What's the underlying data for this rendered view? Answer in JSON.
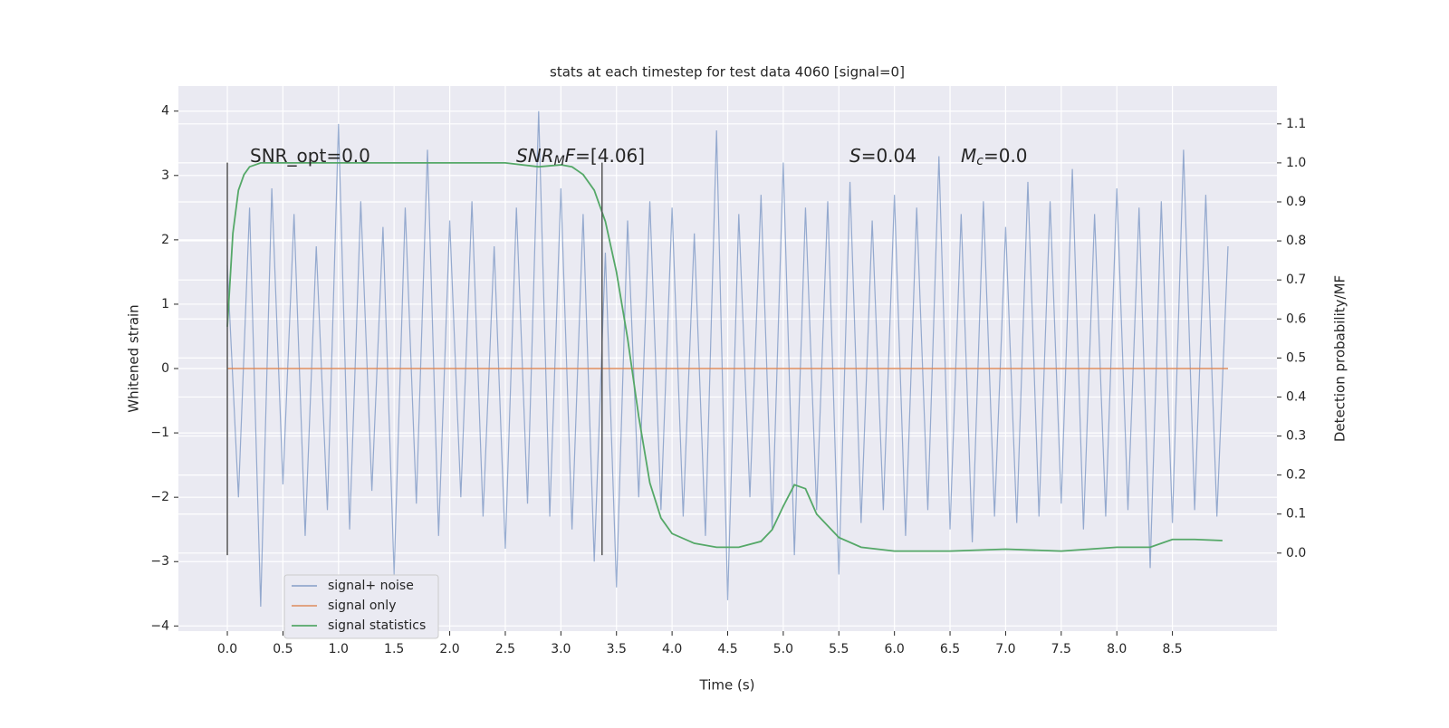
{
  "chart_data": {
    "type": "line",
    "title": "stats at each timestep for test data 4060 [signal=0]",
    "xlabel": "Time (s)",
    "ylabel": "Whitened strain",
    "y2label": "Detection probability/MF",
    "xlim": [
      -0.44,
      9.44
    ],
    "ylim": [
      -4.08,
      4.39
    ],
    "y2lim": [
      -0.2,
      1.197
    ],
    "xticks": [
      {
        "value": 0,
        "label": "0.0"
      },
      0.5,
      {
        "value": 1,
        "label": "1.0"
      },
      1.5,
      {
        "value": 2,
        "label": "2.0"
      },
      2.5,
      {
        "value": 3,
        "label": "3.0"
      },
      3.5,
      {
        "value": 4,
        "label": "4.0"
      },
      4.5,
      {
        "value": 5,
        "label": "5.0"
      },
      5.5,
      {
        "value": 6,
        "label": "6.0"
      },
      6.5,
      {
        "value": 7,
        "label": "7.0"
      },
      7.5,
      {
        "value": 8,
        "label": "8.0"
      },
      8.5
    ],
    "yticks": [
      {
        "value": -4,
        "label": "−4"
      },
      {
        "value": -3,
        "label": "−3"
      },
      {
        "value": -2,
        "label": "−2"
      },
      {
        "value": -1,
        "label": "−1"
      },
      0,
      1,
      2,
      3,
      4
    ],
    "y2ticks": [
      {
        "value": 0,
        "label": "0.0"
      },
      0.1,
      0.2,
      0.3,
      0.4,
      0.5,
      0.6,
      0.7,
      0.8,
      0.9,
      {
        "value": 1,
        "label": "1.0"
      },
      1.1
    ],
    "grid": true,
    "legend": "lower left",
    "series": [
      {
        "name": "signal+ noise",
        "color": "#4c72b0",
        "opacity": 0.55,
        "x": [
          0,
          0.1,
          0.2,
          0.3,
          0.4,
          0.5,
          0.6,
          0.7,
          0.8,
          0.9,
          1.0,
          1.1,
          1.2,
          1.3,
          1.4,
          1.5,
          1.6,
          1.7,
          1.8,
          1.9,
          2.0,
          2.1,
          2.2,
          2.3,
          2.4,
          2.5,
          2.6,
          2.7,
          2.8,
          2.9,
          3.0,
          3.1,
          3.2,
          3.3,
          3.4,
          3.5,
          3.6,
          3.7,
          3.8,
          3.9,
          4.0,
          4.1,
          4.2,
          4.3,
          4.4,
          4.5,
          4.6,
          4.7,
          4.8,
          4.9,
          5.0,
          5.1,
          5.2,
          5.3,
          5.4,
          5.5,
          5.6,
          5.7,
          5.8,
          5.9,
          6.0,
          6.1,
          6.2,
          6.3,
          6.4,
          6.5,
          6.6,
          6.7,
          6.8,
          6.9,
          7.0,
          7.1,
          7.2,
          7.3,
          7.4,
          7.5,
          7.6,
          7.7,
          7.8,
          7.9,
          8.0,
          8.1,
          8.2,
          8.3,
          8.4,
          8.5,
          8.6,
          8.7,
          8.8,
          8.9,
          9.0
        ],
        "values": [
          1.6,
          -2.0,
          2.5,
          -3.7,
          2.8,
          -1.8,
          2.4,
          -2.6,
          1.9,
          -2.2,
          3.8,
          -2.5,
          2.6,
          -1.9,
          2.2,
          -3.2,
          2.5,
          -2.1,
          3.4,
          -2.6,
          2.3,
          -2.0,
          2.6,
          -2.3,
          1.9,
          -2.8,
          2.5,
          -2.1,
          4.0,
          -2.3,
          2.8,
          -2.5,
          2.4,
          -3.0,
          1.8,
          -3.4,
          2.3,
          -2.0,
          2.6,
          -2.2,
          2.5,
          -2.3,
          2.1,
          -2.6,
          3.7,
          -3.6,
          2.4,
          -2.0,
          2.7,
          -2.5,
          3.2,
          -2.9,
          2.5,
          -2.2,
          2.6,
          -3.2,
          2.9,
          -2.4,
          2.3,
          -2.2,
          2.7,
          -2.6,
          2.5,
          -2.2,
          3.3,
          -2.5,
          2.4,
          -2.7,
          2.6,
          -2.3,
          2.2,
          -2.4,
          2.9,
          -2.3,
          2.6,
          -2.1,
          3.1,
          -2.5,
          2.4,
          -2.3,
          2.8,
          -2.2,
          2.5,
          -3.1,
          2.6,
          -2.4,
          3.4,
          -2.2,
          2.7,
          -2.3,
          1.9
        ]
      },
      {
        "name": "signal only",
        "color": "#dd8452",
        "opacity": 0.8,
        "x": [
          0,
          9.0
        ],
        "values": [
          0,
          0
        ]
      },
      {
        "name": "signal statistics",
        "color": "#55a868",
        "opacity": 1,
        "axis": "y2",
        "x": [
          0,
          0.05,
          0.1,
          0.15,
          0.2,
          0.3,
          0.5,
          1,
          1.5,
          2,
          2.5,
          2.8,
          3.0,
          3.1,
          3.2,
          3.3,
          3.4,
          3.5,
          3.6,
          3.7,
          3.8,
          3.9,
          4.0,
          4.2,
          4.4,
          4.6,
          4.8,
          4.9,
          5.0,
          5.1,
          5.2,
          5.3,
          5.5,
          5.7,
          6.0,
          6.5,
          7.0,
          7.5,
          8.0,
          8.3,
          8.5,
          8.7,
          8.95
        ],
        "values": [
          0.58,
          0.82,
          0.93,
          0.97,
          0.99,
          1.0,
          1.0,
          1.0,
          1.0,
          1.0,
          1.0,
          0.99,
          0.995,
          0.99,
          0.97,
          0.93,
          0.85,
          0.72,
          0.55,
          0.35,
          0.18,
          0.09,
          0.05,
          0.025,
          0.015,
          0.015,
          0.03,
          0.06,
          0.12,
          0.175,
          0.165,
          0.1,
          0.04,
          0.015,
          0.005,
          0.005,
          0.01,
          0.005,
          0.015,
          0.015,
          0.035,
          0.035,
          0.032
        ]
      }
    ],
    "vlines": [
      {
        "x": 0,
        "ymin": -2.9,
        "ymax": 3.2,
        "color": "#555555"
      },
      {
        "x": 3.37,
        "ymin": -2.9,
        "ymax": 3.2,
        "color": "#555555"
      }
    ],
    "annotations": [
      {
        "parts": [
          {
            "text": "SNR_opt=0.0",
            "style": "normal"
          }
        ]
      },
      {
        "parts": [
          {
            "text": "SNR",
            "style": "italic"
          },
          {
            "text": "M",
            "style": "sub"
          },
          {
            "text": "F",
            "style": "italic"
          },
          {
            "text": "=[4.06]",
            "style": "normal"
          }
        ]
      },
      {
        "parts": [
          {
            "text": "S",
            "style": "italic"
          },
          {
            "text": "=0.04",
            "style": "normal"
          }
        ]
      },
      {
        "parts": [
          {
            "text": "M",
            "style": "italic"
          },
          {
            "text": "c",
            "style": "sub"
          },
          {
            "text": "=0.0",
            "style": "normal"
          }
        ]
      }
    ]
  }
}
